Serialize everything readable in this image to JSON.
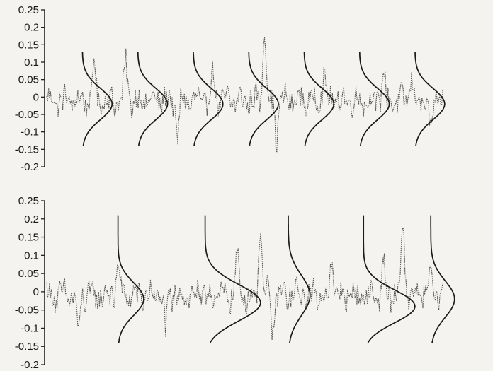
{
  "chart_data": [
    {
      "type": "line",
      "title": "",
      "xlabel": "",
      "ylabel": "",
      "ylim": [
        -0.2,
        0.25
      ],
      "yticks": [
        "0.25",
        "0.2",
        "0.15",
        "0.1",
        "0.05",
        "0",
        "-0.05",
        "-0.1",
        "-0.15",
        "-0.2"
      ],
      "grid": false,
      "legend": "none",
      "signal": {
        "x_range": [
          0,
          100
        ],
        "baseline": -0.01,
        "noise_amplitude": 0.03,
        "spikes": [
          {
            "x": 12,
            "y": 0.1
          },
          {
            "x": 20,
            "y": 0.11
          },
          {
            "x": 33,
            "y": -0.12
          },
          {
            "x": 42,
            "y": 0.08
          },
          {
            "x": 55,
            "y": 0.22
          },
          {
            "x": 58,
            "y": -0.12
          },
          {
            "x": 70,
            "y": 0.07
          },
          {
            "x": 85,
            "y": 0.08
          },
          {
            "x": 92,
            "y": 0.06
          },
          {
            "x": 97,
            "y": -0.12
          }
        ]
      },
      "distribution_curves": {
        "count": 7,
        "centers_x": [
          9,
          23,
          37,
          51,
          65,
          79,
          93
        ],
        "mode_y": -0.02,
        "sigma_y": 0.045,
        "peak_width_x": 7.5,
        "y_extent": [
          -0.14,
          0.13
        ]
      }
    },
    {
      "type": "line",
      "title": "",
      "xlabel": "",
      "ylabel": "",
      "ylim": [
        -0.2,
        0.25
      ],
      "yticks": [
        "0.25",
        "0.2",
        "0.15",
        "0.1",
        "0.05",
        "0",
        "-0.05",
        "-0.1",
        "-0.15",
        "-0.2"
      ],
      "grid": false,
      "legend": "none",
      "signal": {
        "x_range": [
          0,
          100
        ],
        "baseline": -0.01,
        "noise_amplitude": 0.03,
        "spikes": [
          {
            "x": 8,
            "y": -0.13
          },
          {
            "x": 18,
            "y": 0.09
          },
          {
            "x": 30,
            "y": -0.11
          },
          {
            "x": 48,
            "y": 0.11
          },
          {
            "x": 54,
            "y": 0.21
          },
          {
            "x": 57,
            "y": -0.12
          },
          {
            "x": 72,
            "y": 0.09
          },
          {
            "x": 85,
            "y": 0.08
          },
          {
            "x": 90,
            "y": 0.2
          },
          {
            "x": 97,
            "y": 0.06
          }
        ]
      },
      "distribution_curves": {
        "count": 5,
        "centers_x": [
          18,
          40,
          61,
          80,
          97
        ],
        "modes_y": [
          -0.02,
          -0.03,
          -0.01,
          -0.04,
          -0.02
        ],
        "sigmas_y": [
          0.045,
          0.05,
          0.055,
          0.045,
          0.05
        ],
        "peak_widths_x": [
          6.5,
          14,
          5.5,
          13,
          6
        ],
        "y_extent": [
          -0.14,
          0.21
        ]
      }
    }
  ]
}
